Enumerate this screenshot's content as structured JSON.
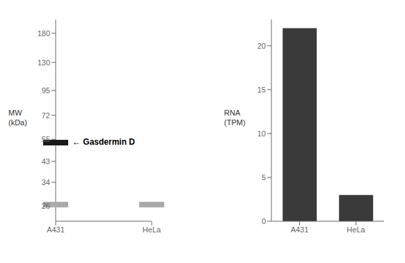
{
  "chart_data": [
    {
      "type": "scatter",
      "categories": [
        "A431",
        "HeLa"
      ],
      "series": [
        {
          "color": "#1a1a1a",
          "values": [
            53,
            null
          ]
        },
        {
          "color": "#aaaaaa",
          "values": [
            26.5,
            26.5
          ]
        }
      ],
      "log": "y",
      "ylim": [
        22,
        210
      ],
      "yticks": [
        180,
        130,
        95,
        72,
        55,
        43,
        34,
        26
      ],
      "ylabel": "MW\n(kDa)",
      "annotation": "← Gasdermin D"
    },
    {
      "type": "bar",
      "categories": [
        "A431",
        "HeLa"
      ],
      "values": [
        22.0,
        3.0
      ],
      "color": "#3a3a3a",
      "ylim": [
        0,
        23
      ],
      "yticks": [
        0,
        5,
        10,
        15,
        20
      ],
      "ylabel": "RNA\n(TPM)"
    }
  ]
}
